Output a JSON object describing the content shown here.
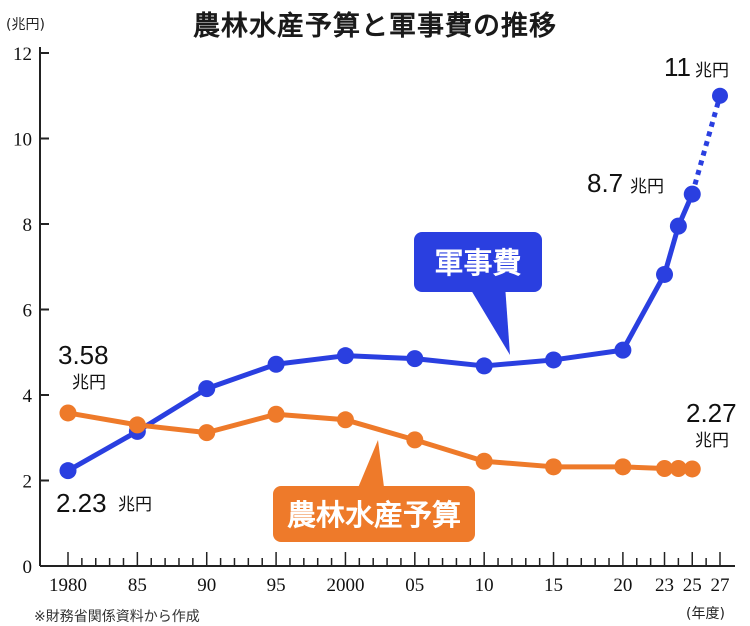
{
  "title": "農林水産予算と軍事費の推移",
  "y_unit": "(兆円)",
  "x_unit": "(年度)",
  "source": "※財務省関係資料から作成",
  "colors": {
    "military": "#2a3fe0",
    "agriculture": "#ee7a2a",
    "axis": "#222222"
  },
  "chart_data": {
    "type": "line",
    "ylim": [
      0,
      12
    ],
    "yticks": [
      0,
      2,
      4,
      6,
      8,
      10,
      12
    ],
    "xlim": [
      1980,
      2027
    ],
    "xticks": [
      {
        "value": 1980,
        "label": "1980"
      },
      {
        "value": 1985,
        "label": "85"
      },
      {
        "value": 1990,
        "label": "90"
      },
      {
        "value": 1995,
        "label": "95"
      },
      {
        "value": 2000,
        "label": "2000"
      },
      {
        "value": 2005,
        "label": "05"
      },
      {
        "value": 2010,
        "label": "10"
      },
      {
        "value": 2015,
        "label": "15"
      },
      {
        "value": 2020,
        "label": "20"
      },
      {
        "value": 2023,
        "label": "23"
      },
      {
        "value": 2025,
        "label": "25"
      },
      {
        "value": 2027,
        "label": "27"
      }
    ],
    "series": [
      {
        "name": "軍事費",
        "key": "military",
        "x": [
          1980,
          1985,
          1990,
          1995,
          2000,
          2005,
          2010,
          2015,
          2020,
          2023,
          2024,
          2025
        ],
        "y": [
          2.23,
          3.15,
          4.15,
          4.72,
          4.92,
          4.85,
          4.68,
          4.82,
          5.05,
          6.82,
          7.95,
          8.7
        ],
        "projection": {
          "x": [
            2025,
            2027
          ],
          "y": [
            8.7,
            11
          ]
        }
      },
      {
        "name": "農林水産予算",
        "key": "agriculture",
        "x": [
          1980,
          1985,
          1990,
          1995,
          2000,
          2005,
          2010,
          2015,
          2020,
          2023,
          2024,
          2025
        ],
        "y": [
          3.58,
          3.3,
          3.12,
          3.55,
          3.42,
          2.95,
          2.45,
          2.32,
          2.32,
          2.28,
          2.28,
          2.27
        ]
      }
    ],
    "annotations": [
      {
        "value": "2.23",
        "unit": "兆円"
      },
      {
        "value": "3.58",
        "unit": "兆円"
      },
      {
        "value": "2.27",
        "unit": "兆円"
      },
      {
        "value": "8.7",
        "unit": "兆円"
      },
      {
        "value": "11",
        "unit": "兆円"
      }
    ]
  }
}
